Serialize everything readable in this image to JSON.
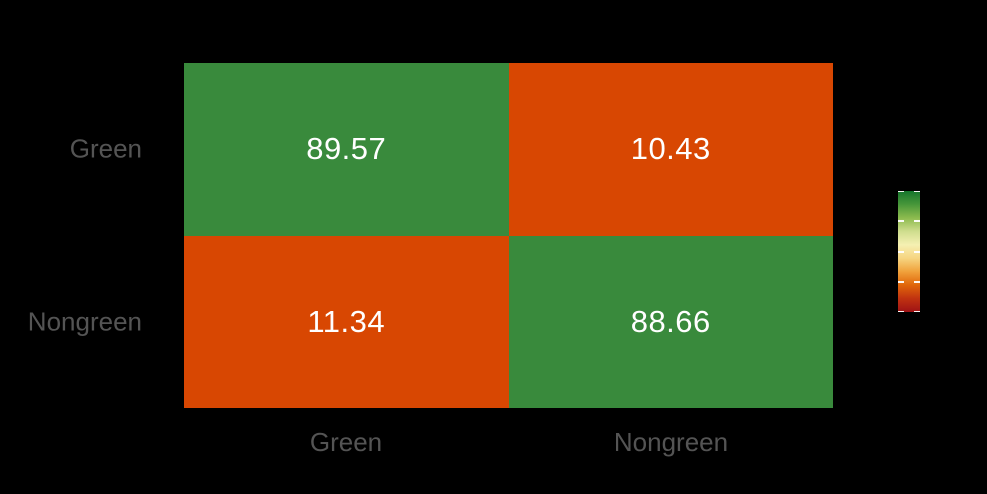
{
  "page": {
    "background_color": "#000000"
  },
  "chart_data": {
    "type": "heatmap",
    "title": "",
    "xlabel": "",
    "ylabel": "",
    "x_categories": [
      "Green",
      "Nongreen"
    ],
    "y_categories": [
      "Green",
      "Nongreen"
    ],
    "values": [
      [
        "89.57",
        "10.43"
      ],
      [
        "11.34",
        "88.66"
      ]
    ],
    "cell_colors": [
      [
        "#398a3c",
        "#d84702"
      ],
      [
        "#d84702",
        "#398a3c"
      ]
    ],
    "value_text_color": "#ffffff",
    "axis_label_color": "#545454",
    "grid": false,
    "legend_position": "right",
    "colorbar": {
      "orientation": "vertical",
      "high_is_top": true,
      "gradient_top_to_bottom": [
        "#15752c",
        "#48973a",
        "#8cbb4e",
        "#cfdd8e",
        "#f5f0b2",
        "#f6d581",
        "#f0a13b",
        "#e0660a",
        "#c03210",
        "#9e1215"
      ],
      "tick_positions_percent": [
        0,
        25,
        50,
        75,
        100
      ],
      "tick_color": "#ffffff",
      "labels_visible": false
    }
  }
}
